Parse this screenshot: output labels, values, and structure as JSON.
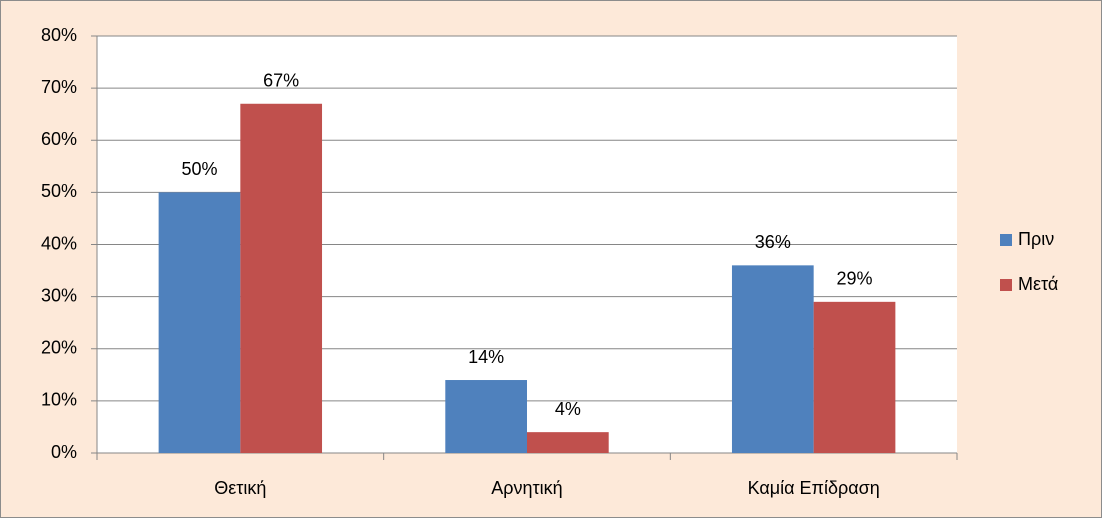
{
  "chart_data": {
    "type": "bar",
    "categories": [
      "Θετική",
      "Αρνητική",
      "Καμία Επίδραση"
    ],
    "series": [
      {
        "name": "Πριν",
        "color": "#4f81bd",
        "values": [
          50,
          14,
          36
        ],
        "value_labels": [
          "50%",
          "14%",
          "36%"
        ]
      },
      {
        "name": "Μετά",
        "color": "#c0504d",
        "values": [
          67,
          4,
          29
        ],
        "value_labels": [
          "67%",
          "4%",
          "29%"
        ]
      }
    ],
    "ylim": [
      0,
      80
    ],
    "yticks": [
      {
        "value": 0,
        "label": "0%"
      },
      {
        "value": 10,
        "label": "10%"
      },
      {
        "value": 20,
        "label": "20%"
      },
      {
        "value": 30,
        "label": "30%"
      },
      {
        "value": 40,
        "label": "40%"
      },
      {
        "value": 50,
        "label": "50%"
      },
      {
        "value": 60,
        "label": "60%"
      },
      {
        "value": 70,
        "label": "70%"
      },
      {
        "value": 80,
        "label": "80%"
      }
    ],
    "grid": true,
    "legend": "right"
  }
}
